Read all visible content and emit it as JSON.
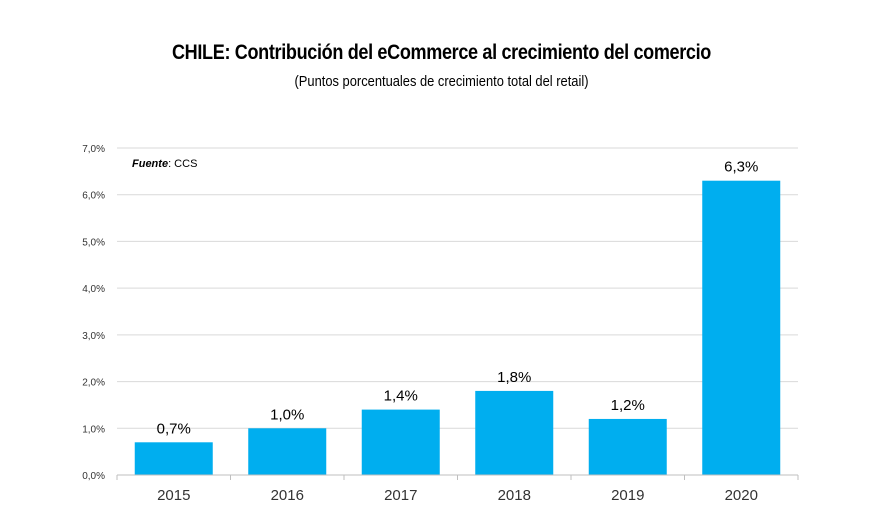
{
  "chart_data": {
    "type": "bar",
    "title": "CHILE: Contribución del eCommerce al crecimiento del comercio",
    "subtitle": "(Puntos porcentuales de crecimiento total del retail)",
    "categories": [
      "2015",
      "2016",
      "2017",
      "2018",
      "2019",
      "2020"
    ],
    "values": [
      0.7,
      1.0,
      1.4,
      1.8,
      1.2,
      6.3
    ],
    "data_labels": [
      "0,7%",
      "1,0%",
      "1,4%",
      "1,8%",
      "1,2%",
      "6,3%"
    ],
    "y_ticks": [
      "0,0%",
      "1,0%",
      "2,0%",
      "3,0%",
      "4,0%",
      "5,0%",
      "6,0%",
      "7,0%"
    ],
    "ylim": [
      0,
      7
    ],
    "grid": true,
    "bar_color": "#00AEEF",
    "source_label": "Fuente",
    "source_value": ": CCS"
  }
}
